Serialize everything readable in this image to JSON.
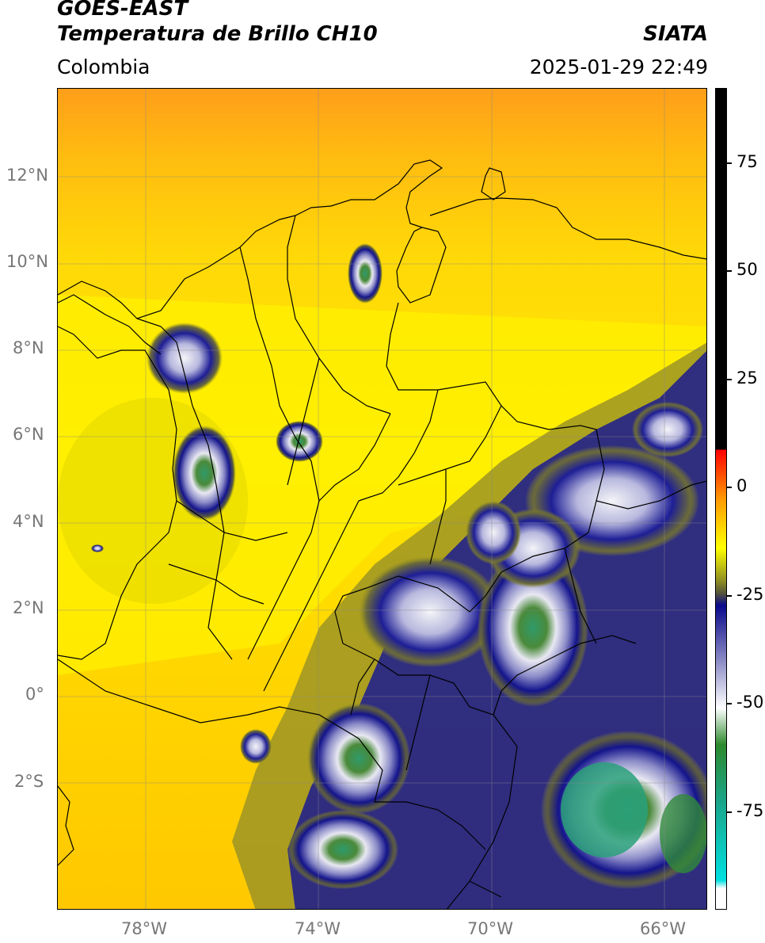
{
  "header": {
    "title_line1": "GOES-EAST",
    "title_line2": "Temperatura de Brillo CH10",
    "source": "SIATA",
    "region": "Colombia",
    "datetime": "2025-01-29 22:49"
  },
  "map": {
    "lat_labels": [
      "12°N",
      "10°N",
      "8°N",
      "6°N",
      "4°N",
      "2°N",
      "0°",
      "2°S"
    ],
    "lon_labels": [
      "78°W",
      "74°W",
      "70°W",
      "66°W"
    ]
  },
  "colorbar": {
    "ticks": [
      "75",
      "50",
      "25",
      "0",
      "-25",
      "-50",
      "-75"
    ],
    "colors": {
      "black": "#000000",
      "red": "#ff0000",
      "orange": "#ff9900",
      "yellow": "#ffff00",
      "olive": "#8e8e22",
      "navy": "#0a0a8c",
      "white": "#ffffff",
      "green": "#2d8a2d",
      "cyan": "#00e0e0"
    }
  }
}
